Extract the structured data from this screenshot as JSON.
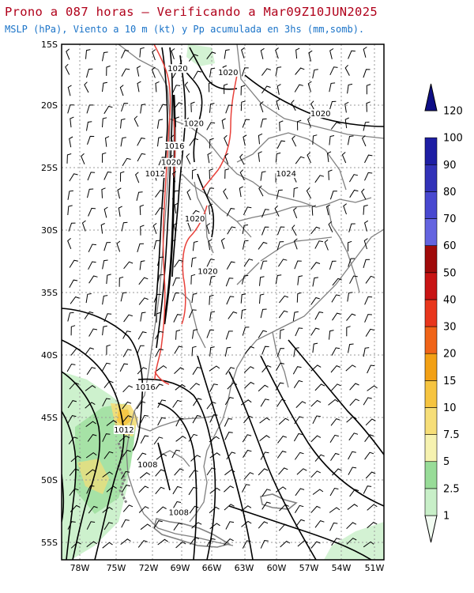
{
  "title": "Prono a 087 horas — Verificando a Mar09Z10JUN2025",
  "subtitle": "MSLP (hPa), Viento a 10 m (kt) y Pp acumulada en 3hs (mm,somb).",
  "colors": {
    "title": "#b0001a",
    "subtitle": "#1a73c8",
    "isobar": "#000000",
    "isobar_1020_highlight": "#e8413a",
    "coastline": "#808080",
    "grid": "#9a9a9a"
  },
  "latitude_labels": [
    "15S",
    "20S",
    "25S",
    "30S",
    "35S",
    "40S",
    "45S",
    "50S",
    "55S"
  ],
  "longitude_labels": [
    "78W",
    "75W",
    "72W",
    "69W",
    "66W",
    "63W",
    "60W",
    "57W",
    "54W",
    "51W"
  ],
  "isobar_labels": [
    {
      "text": "1020",
      "lon": -69.2,
      "lat": -17.1
    },
    {
      "text": "1020",
      "lon": -64.5,
      "lat": -17.4
    },
    {
      "text": "1020",
      "lon": -55.9,
      "lat": -20.7
    },
    {
      "text": "1020",
      "lon": -67.7,
      "lat": -21.5
    },
    {
      "text": "1016",
      "lon": -69.5,
      "lat": -23.3
    },
    {
      "text": "1020",
      "lon": -69.8,
      "lat": -24.6
    },
    {
      "text": "1012",
      "lon": -71.3,
      "lat": -25.5
    },
    {
      "text": "1024",
      "lon": -59.1,
      "lat": -25.5
    },
    {
      "text": "1020",
      "lon": -67.6,
      "lat": -29.1
    },
    {
      "text": "1020",
      "lon": -66.4,
      "lat": -33.3
    },
    {
      "text": "1016",
      "lon": -72.2,
      "lat": -42.6
    },
    {
      "text": "1012",
      "lon": -74.2,
      "lat": -46.0
    },
    {
      "text": "1008",
      "lon": -72.0,
      "lat": -48.8
    },
    {
      "text": "1008",
      "lon": -69.1,
      "lat": -52.6
    }
  ],
  "colorbar": {
    "unit": "mm",
    "levels": [
      "1",
      "2.5",
      "5",
      "7.5",
      "10",
      "15",
      "20",
      "30",
      "40",
      "50",
      "60",
      "70",
      "80",
      "90",
      "100",
      "120"
    ],
    "colors": [
      "#f2fcf2",
      "#c8efc8",
      "#98dc98",
      "#f6f2b0",
      "#f6de78",
      "#f6c440",
      "#f2a014",
      "#f06418",
      "#e8361c",
      "#c81414",
      "#a00a0a",
      "#6464e0",
      "#4848d0",
      "#3232b8",
      "#1e1ea4",
      "#0e0e86"
    ]
  }
}
